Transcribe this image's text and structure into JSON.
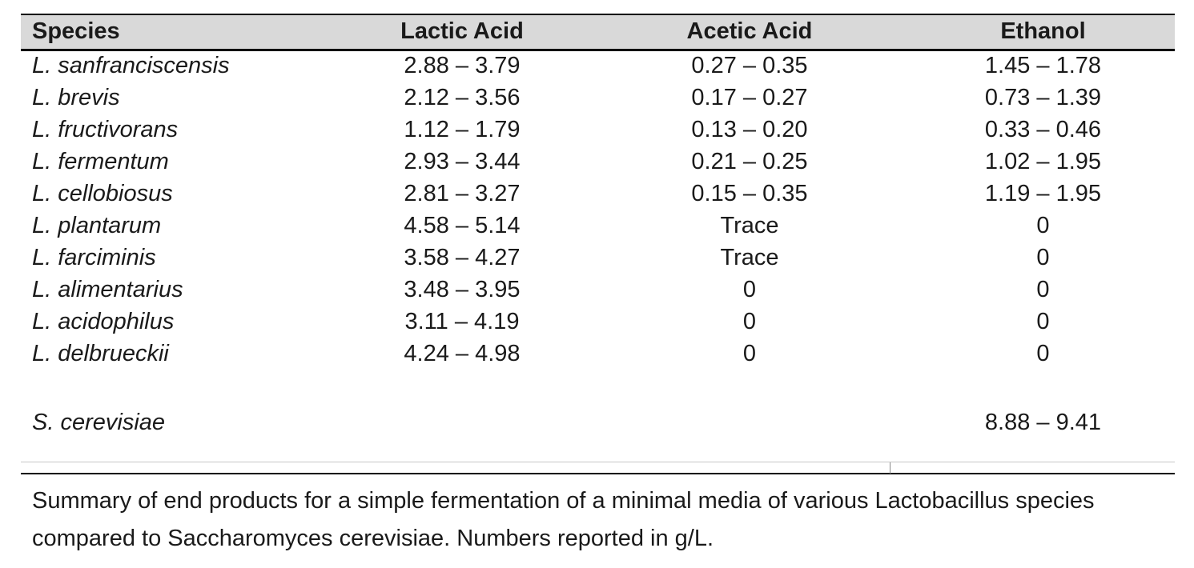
{
  "table": {
    "headers": [
      "Species",
      "Lactic Acid",
      "Acetic Acid",
      "Ethanol"
    ],
    "rows": [
      {
        "species": "L. sanfranciscensis",
        "lactic_acid": "2.88 – 3.79",
        "acetic_acid": "0.27 – 0.35",
        "ethanol": "1.45 – 1.78"
      },
      {
        "species": "L. brevis",
        "lactic_acid": "2.12 – 3.56",
        "acetic_acid": "0.17 – 0.27",
        "ethanol": "0.73 – 1.39"
      },
      {
        "species": "L. fructivorans",
        "lactic_acid": "1.12 – 1.79",
        "acetic_acid": "0.13 – 0.20",
        "ethanol": "0.33 – 0.46"
      },
      {
        "species": "L. fermentum",
        "lactic_acid": "2.93 – 3.44",
        "acetic_acid": "0.21 – 0.25",
        "ethanol": "1.02 – 1.95"
      },
      {
        "species": "L. cellobiosus",
        "lactic_acid": "2.81 – 3.27",
        "acetic_acid": "0.15 – 0.35",
        "ethanol": "1.19 – 1.95"
      },
      {
        "species": "L. plantarum",
        "lactic_acid": "4.58 – 5.14",
        "acetic_acid": "Trace",
        "ethanol": "0"
      },
      {
        "species": "L. farciminis",
        "lactic_acid": "3.58 – 4.27",
        "acetic_acid": "Trace",
        "ethanol": "0"
      },
      {
        "species": "L. alimentarius",
        "lactic_acid": "3.48 – 3.95",
        "acetic_acid": "0",
        "ethanol": "0"
      },
      {
        "species": "L. acidophilus",
        "lactic_acid": "3.11 – 4.19",
        "acetic_acid": "0",
        "ethanol": "0"
      },
      {
        "species": "L. delbrueckii",
        "lactic_acid": "4.24 – 4.98",
        "acetic_acid": "0",
        "ethanol": "0"
      },
      {
        "species": "S. cerevisiae",
        "lactic_acid": "",
        "acetic_acid": "",
        "ethanol": "8.88 – 9.41"
      }
    ]
  },
  "caption": "Summary of end products for a simple fermentation of a minimal media of various Lactobacillus species compared to Saccharomyces cerevisiae. Numbers reported in g/L.",
  "colors": {
    "header_background": "#d9d9d9",
    "rule_black": "#000000",
    "rule_light": "#c6c6c6",
    "text": "#1a1a1a"
  }
}
